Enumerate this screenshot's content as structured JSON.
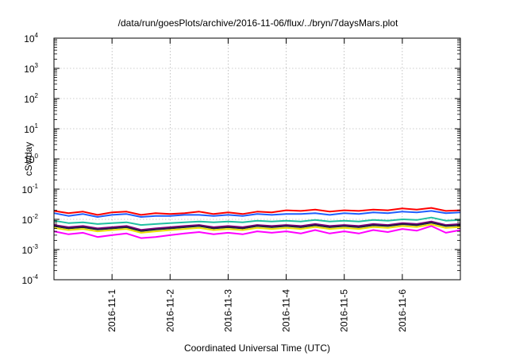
{
  "chart_data": {
    "type": "line",
    "title": "/data/run/goesPlots/archive/2016-11-06/flux/../bryn/7daysMars.plot",
    "xlabel": "Coordinated Universal Time (UTC)",
    "ylabel": "cSv/day",
    "y_scale": "log",
    "ylim": [
      0.0001,
      10000
    ],
    "y_ticks": [
      {
        "base": "10",
        "exp": "4"
      },
      {
        "base": "10",
        "exp": "3"
      },
      {
        "base": "10",
        "exp": "2"
      },
      {
        "base": "10",
        "exp": "1"
      },
      {
        "base": "10",
        "exp": "0"
      },
      {
        "base": "10",
        "exp": "-1"
      },
      {
        "base": "10",
        "exp": "-2"
      },
      {
        "base": "10",
        "exp": "-3"
      },
      {
        "base": "10",
        "exp": "-4"
      }
    ],
    "x_range_days": [
      0,
      7
    ],
    "x_ticks": [
      "2016-11-1",
      "2016-11-2",
      "2016-11-3",
      "2016-11-4",
      "2016-11-5",
      "2016-11-6"
    ],
    "x_tick_positions_days": [
      1,
      2,
      3,
      4,
      5,
      6
    ],
    "grid": true,
    "x": [
      0.0,
      0.25,
      0.5,
      0.75,
      1.0,
      1.25,
      1.5,
      1.75,
      2.0,
      2.25,
      2.5,
      2.75,
      3.0,
      3.25,
      3.5,
      3.75,
      4.0,
      4.25,
      4.5,
      4.75,
      5.0,
      5.25,
      5.5,
      5.75,
      6.0,
      6.25,
      6.5,
      6.75,
      7.0
    ],
    "series": [
      {
        "color": "#ff0000",
        "values": [
          0.019,
          0.016,
          0.018,
          0.014,
          0.017,
          0.018,
          0.014,
          0.016,
          0.015,
          0.016,
          0.018,
          0.015,
          0.017,
          0.015,
          0.018,
          0.017,
          0.02,
          0.019,
          0.021,
          0.018,
          0.02,
          0.019,
          0.021,
          0.02,
          0.023,
          0.021,
          0.024,
          0.019,
          0.02
        ]
      },
      {
        "color": "#1f5fff",
        "values": [
          0.016,
          0.013,
          0.015,
          0.012,
          0.014,
          0.015,
          0.012,
          0.013,
          0.013,
          0.014,
          0.014,
          0.013,
          0.014,
          0.013,
          0.015,
          0.014,
          0.015,
          0.015,
          0.016,
          0.014,
          0.016,
          0.015,
          0.017,
          0.016,
          0.018,
          0.017,
          0.019,
          0.016,
          0.017
        ]
      },
      {
        "color": "#20c0a0",
        "values": [
          0.009,
          0.0075,
          0.008,
          0.007,
          0.0075,
          0.008,
          0.0065,
          0.007,
          0.0075,
          0.008,
          0.0085,
          0.008,
          0.0085,
          0.008,
          0.009,
          0.0085,
          0.009,
          0.0085,
          0.0095,
          0.0085,
          0.009,
          0.0085,
          0.0095,
          0.009,
          0.01,
          0.0095,
          0.0115,
          0.009,
          0.0095
        ]
      },
      {
        "color": "#800080",
        "values": [
          0.0065,
          0.0055,
          0.006,
          0.005,
          0.0055,
          0.006,
          0.0045,
          0.005,
          0.0055,
          0.006,
          0.0065,
          0.0055,
          0.006,
          0.0055,
          0.0065,
          0.006,
          0.0065,
          0.006,
          0.007,
          0.006,
          0.0065,
          0.006,
          0.007,
          0.0065,
          0.0075,
          0.007,
          0.0085,
          0.0065,
          0.007
        ]
      },
      {
        "color": "#202040",
        "values": [
          0.006,
          0.005,
          0.0055,
          0.0046,
          0.005,
          0.0055,
          0.0041,
          0.0046,
          0.005,
          0.0055,
          0.006,
          0.005,
          0.0055,
          0.005,
          0.006,
          0.0055,
          0.006,
          0.0055,
          0.0064,
          0.0055,
          0.006,
          0.0055,
          0.0064,
          0.006,
          0.0069,
          0.0064,
          0.0078,
          0.006,
          0.0064
        ]
      },
      {
        "color": "#e8e000",
        "values": [
          0.0052,
          0.0044,
          0.0048,
          0.004,
          0.0044,
          0.0048,
          0.0036,
          0.004,
          0.0044,
          0.0048,
          0.0052,
          0.0044,
          0.0048,
          0.0044,
          0.0052,
          0.0048,
          0.0052,
          0.0048,
          0.0056,
          0.0048,
          0.0052,
          0.0048,
          0.0056,
          0.0052,
          0.006,
          0.0056,
          0.0068,
          0.0052,
          0.0056
        ]
      },
      {
        "color": "#ff00ff",
        "values": [
          0.004,
          0.0032,
          0.0036,
          0.0026,
          0.003,
          0.0034,
          0.0024,
          0.0026,
          0.003,
          0.0034,
          0.0038,
          0.0032,
          0.0036,
          0.0032,
          0.004,
          0.0036,
          0.004,
          0.0034,
          0.0044,
          0.0034,
          0.004,
          0.0034,
          0.0044,
          0.0038,
          0.0048,
          0.0042,
          0.006,
          0.0036,
          0.0044
        ]
      }
    ]
  }
}
